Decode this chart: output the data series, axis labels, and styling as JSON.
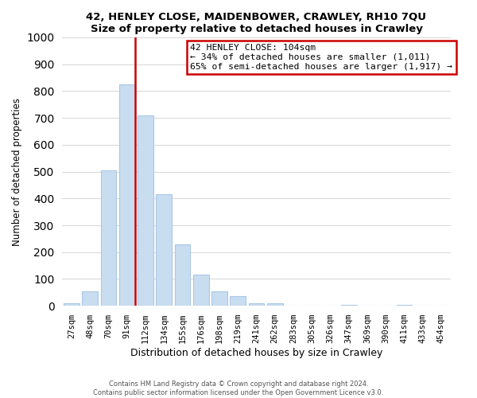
{
  "title": "42, HENLEY CLOSE, MAIDENBOWER, CRAWLEY, RH10 7QU",
  "subtitle": "Size of property relative to detached houses in Crawley",
  "xlabel": "Distribution of detached houses by size in Crawley",
  "ylabel": "Number of detached properties",
  "bar_labels": [
    "27sqm",
    "48sqm",
    "70sqm",
    "91sqm",
    "112sqm",
    "134sqm",
    "155sqm",
    "176sqm",
    "198sqm",
    "219sqm",
    "241sqm",
    "262sqm",
    "283sqm",
    "305sqm",
    "326sqm",
    "347sqm",
    "369sqm",
    "390sqm",
    "411sqm",
    "433sqm",
    "454sqm"
  ],
  "bar_values": [
    10,
    55,
    505,
    825,
    710,
    415,
    230,
    115,
    55,
    35,
    10,
    10,
    0,
    0,
    0,
    5,
    0,
    0,
    5,
    0,
    0
  ],
  "bar_color": "#c9ddf0",
  "bar_edge_color": "#a8c8e8",
  "marker_line_color": "#cc0000",
  "annotation_text": "42 HENLEY CLOSE: 104sqm\n← 34% of detached houses are smaller (1,011)\n65% of semi-detached houses are larger (1,917) →",
  "annotation_box_color": "#ffffff",
  "annotation_box_edge": "#cc0000",
  "ylim": [
    0,
    1000
  ],
  "yticks": [
    0,
    100,
    200,
    300,
    400,
    500,
    600,
    700,
    800,
    900,
    1000
  ],
  "footer_line1": "Contains HM Land Registry data © Crown copyright and database right 2024.",
  "footer_line2": "Contains public sector information licensed under the Open Government Licence v3.0."
}
